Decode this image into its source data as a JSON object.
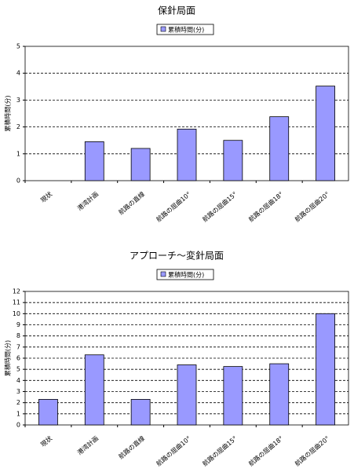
{
  "chart_data": [
    {
      "type": "bar",
      "title": "保針局面",
      "y_label": "累積時間(分)",
      "categories": [
        "現状",
        "港湾計画",
        "航路の直線",
        "航路の屈曲10°",
        "航路の屈曲15°",
        "航路の屈曲18°",
        "航路の屈曲20°"
      ],
      "series": [
        {
          "name": "累積時間(分)",
          "color": "#9999ff",
          "values": [
            0,
            1.45,
            1.2,
            1.92,
            1.5,
            2.38,
            3.52
          ]
        }
      ],
      "ylim": [
        0,
        5
      ],
      "yticks": [
        0,
        1,
        2,
        3,
        4,
        5
      ],
      "grid": true,
      "legend": "top"
    },
    {
      "type": "bar",
      "title": "アプローチ～変針局面",
      "y_label": "累積時間(分)",
      "categories": [
        "現状",
        "港湾計画",
        "航路の直線",
        "航路の屈曲10°",
        "航路の屈曲15°",
        "航路の屈曲18°",
        "航路の屈曲20°"
      ],
      "series": [
        {
          "name": "累積時間(分)",
          "color": "#9999ff",
          "values": [
            2.3,
            6.3,
            2.3,
            5.4,
            5.25,
            5.5,
            10.0
          ]
        }
      ],
      "ylim": [
        0,
        12
      ],
      "yticks": [
        0,
        1,
        2,
        3,
        4,
        5,
        6,
        7,
        8,
        9,
        10,
        11,
        12
      ],
      "grid": true,
      "legend": "top"
    }
  ]
}
